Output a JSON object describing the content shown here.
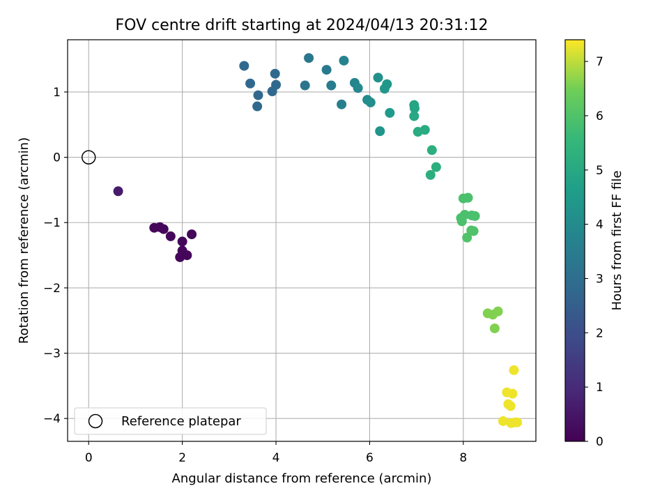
{
  "chart_data": {
    "type": "scatter",
    "title": "FOV centre drift starting at 2024/04/13 20:31:12",
    "xlabel": "Angular distance from reference (arcmin)",
    "ylabel": "Rotation from reference (arcmin)",
    "xlim": [
      -0.45,
      9.55
    ],
    "ylim": [
      -4.35,
      1.8
    ],
    "xticks": [
      0,
      2,
      4,
      6,
      8
    ],
    "xtick_labels": [
      "0",
      "2",
      "4",
      "6",
      "8"
    ],
    "yticks": [
      -4,
      -3,
      -2,
      -1,
      0,
      1
    ],
    "ytick_labels": [
      "−4",
      "−3",
      "−2",
      "−1",
      "0",
      "1"
    ],
    "grid": true,
    "legend": {
      "placement": "lower-left",
      "entries": [
        "Reference platepar"
      ]
    },
    "reference_point": {
      "name": "Reference platepar",
      "x": 0,
      "y": 0
    },
    "colormap": "viridis",
    "colorbar": {
      "label": "Hours from first FF file",
      "range": [
        0,
        7.4
      ],
      "ticks": [
        0,
        1,
        2,
        3,
        4,
        5,
        6,
        7
      ],
      "tick_labels": [
        "0",
        "1",
        "2",
        "3",
        "4",
        "5",
        "6",
        "7"
      ]
    },
    "points": [
      {
        "x": 0.63,
        "y": -0.52,
        "c": 0.6
      },
      {
        "x": 1.4,
        "y": -1.08,
        "c": 0.15
      },
      {
        "x": 1.52,
        "y": -1.07,
        "c": 0.15
      },
      {
        "x": 1.6,
        "y": -1.1,
        "c": 0.15
      },
      {
        "x": 1.75,
        "y": -1.21,
        "c": 0.15
      },
      {
        "x": 2.0,
        "y": -1.29,
        "c": 0.15
      },
      {
        "x": 2.0,
        "y": -1.43,
        "c": 0.15
      },
      {
        "x": 1.95,
        "y": -1.53,
        "c": 0.15
      },
      {
        "x": 2.1,
        "y": -1.5,
        "c": 0.15
      },
      {
        "x": 2.2,
        "y": -1.18,
        "c": 0.15
      },
      {
        "x": 3.32,
        "y": 1.4,
        "c": 2.8
      },
      {
        "x": 3.45,
        "y": 1.13,
        "c": 2.8
      },
      {
        "x": 3.62,
        "y": 0.95,
        "c": 2.8
      },
      {
        "x": 3.6,
        "y": 0.78,
        "c": 2.8
      },
      {
        "x": 3.92,
        "y": 1.01,
        "c": 2.8
      },
      {
        "x": 3.98,
        "y": 1.28,
        "c": 2.8
      },
      {
        "x": 4.0,
        "y": 1.11,
        "c": 2.8
      },
      {
        "x": 4.62,
        "y": 1.1,
        "c": 3.2
      },
      {
        "x": 4.7,
        "y": 1.52,
        "c": 3.3
      },
      {
        "x": 5.08,
        "y": 1.34,
        "c": 3.4
      },
      {
        "x": 5.18,
        "y": 1.1,
        "c": 3.5
      },
      {
        "x": 5.4,
        "y": 0.81,
        "c": 3.6
      },
      {
        "x": 5.45,
        "y": 1.48,
        "c": 3.7
      },
      {
        "x": 5.68,
        "y": 1.14,
        "c": 3.8
      },
      {
        "x": 5.75,
        "y": 1.06,
        "c": 3.9
      },
      {
        "x": 5.95,
        "y": 0.88,
        "c": 4.0
      },
      {
        "x": 6.02,
        "y": 0.84,
        "c": 4.1
      },
      {
        "x": 6.18,
        "y": 1.22,
        "c": 4.2
      },
      {
        "x": 6.22,
        "y": 0.4,
        "c": 4.3
      },
      {
        "x": 6.32,
        "y": 1.05,
        "c": 4.4
      },
      {
        "x": 6.37,
        "y": 1.12,
        "c": 4.4
      },
      {
        "x": 6.43,
        "y": 0.68,
        "c": 4.5
      },
      {
        "x": 6.95,
        "y": 0.8,
        "c": 4.9
      },
      {
        "x": 6.96,
        "y": 0.75,
        "c": 4.9
      },
      {
        "x": 6.95,
        "y": 0.63,
        "c": 5.0
      },
      {
        "x": 7.03,
        "y": 0.39,
        "c": 5.1
      },
      {
        "x": 7.18,
        "y": 0.42,
        "c": 5.1
      },
      {
        "x": 7.33,
        "y": 0.11,
        "c": 5.2
      },
      {
        "x": 7.42,
        "y": -0.15,
        "c": 5.2
      },
      {
        "x": 7.3,
        "y": -0.27,
        "c": 5.2
      },
      {
        "x": 8.0,
        "y": -0.63,
        "c": 5.9
      },
      {
        "x": 8.1,
        "y": -0.62,
        "c": 5.9
      },
      {
        "x": 8.03,
        "y": -0.88,
        "c": 5.9
      },
      {
        "x": 7.95,
        "y": -0.93,
        "c": 5.9
      },
      {
        "x": 7.97,
        "y": -0.98,
        "c": 5.9
      },
      {
        "x": 8.18,
        "y": -0.89,
        "c": 5.9
      },
      {
        "x": 8.25,
        "y": -0.9,
        "c": 5.9
      },
      {
        "x": 8.17,
        "y": -1.12,
        "c": 6.0
      },
      {
        "x": 8.22,
        "y": -1.13,
        "c": 6.0
      },
      {
        "x": 8.08,
        "y": -1.23,
        "c": 6.0
      },
      {
        "x": 8.52,
        "y": -2.39,
        "c": 6.6
      },
      {
        "x": 8.63,
        "y": -2.41,
        "c": 6.6
      },
      {
        "x": 8.74,
        "y": -2.36,
        "c": 6.6
      },
      {
        "x": 8.67,
        "y": -2.62,
        "c": 6.6
      },
      {
        "x": 9.08,
        "y": -3.26,
        "c": 7.3
      },
      {
        "x": 8.93,
        "y": -3.6,
        "c": 7.3
      },
      {
        "x": 9.05,
        "y": -3.62,
        "c": 7.3
      },
      {
        "x": 8.96,
        "y": -3.78,
        "c": 7.3
      },
      {
        "x": 9.01,
        "y": -3.81,
        "c": 7.3
      },
      {
        "x": 8.85,
        "y": -4.04,
        "c": 7.3
      },
      {
        "x": 9.02,
        "y": -4.07,
        "c": 7.3
      },
      {
        "x": 9.1,
        "y": -4.06,
        "c": 7.3
      },
      {
        "x": 9.15,
        "y": -4.06,
        "c": 7.3
      }
    ]
  }
}
